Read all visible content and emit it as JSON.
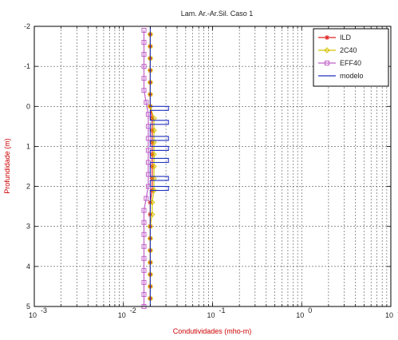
{
  "chart_data": {
    "type": "line",
    "title": "Lam. Ar.-Ar.Sil. Caso 1",
    "xlabel": "Condutividades (mho-m)",
    "ylabel": "Profundidade (m)",
    "x_scale": "log",
    "xlim": [
      0.001,
      10
    ],
    "ylim": [
      5,
      -2
    ],
    "y_inverted": true,
    "grid": true,
    "legend_position": "top-right",
    "x_ticks": [
      {
        "value": 0.001,
        "base": "10",
        "exp": "-3"
      },
      {
        "value": 0.01,
        "base": "10",
        "exp": "-2"
      },
      {
        "value": 0.1,
        "base": "10",
        "exp": "-1"
      },
      {
        "value": 1,
        "base": "10",
        "exp": "0"
      },
      {
        "value": 10,
        "base": "10",
        "exp": "1"
      }
    ],
    "y_ticks": [
      {
        "value": -2,
        "label": "-2"
      },
      {
        "value": -1,
        "label": "-1"
      },
      {
        "value": 0,
        "label": "0"
      },
      {
        "value": 1,
        "label": "1"
      },
      {
        "value": 2,
        "label": "2"
      },
      {
        "value": 3,
        "label": "3"
      },
      {
        "value": 4,
        "label": "4"
      },
      {
        "value": 5,
        "label": "5"
      }
    ],
    "series": [
      {
        "name": "ILD",
        "color": "#e02020",
        "marker": "star",
        "points": [
          [
            0.02,
            -1.8
          ],
          [
            0.02,
            -1.5
          ],
          [
            0.02,
            -1.2
          ],
          [
            0.02,
            -0.9
          ],
          [
            0.02,
            -0.6
          ],
          [
            0.02,
            -0.3
          ],
          [
            0.02,
            0
          ],
          [
            0.021,
            0.3
          ],
          [
            0.021,
            0.6
          ],
          [
            0.021,
            0.9
          ],
          [
            0.021,
            1.2
          ],
          [
            0.021,
            1.5
          ],
          [
            0.021,
            1.8
          ],
          [
            0.021,
            2.1
          ],
          [
            0.02,
            2.4
          ],
          [
            0.02,
            2.7
          ],
          [
            0.02,
            3.0
          ],
          [
            0.02,
            3.3
          ],
          [
            0.02,
            3.6
          ],
          [
            0.02,
            3.9
          ],
          [
            0.02,
            4.2
          ],
          [
            0.02,
            4.5
          ],
          [
            0.02,
            4.8
          ]
        ]
      },
      {
        "name": "2C40",
        "color": "#d4c200",
        "marker": "diamond",
        "points": [
          [
            0.02,
            -1.8
          ],
          [
            0.02,
            -1.5
          ],
          [
            0.02,
            -1.2
          ],
          [
            0.02,
            -0.9
          ],
          [
            0.02,
            -0.6
          ],
          [
            0.02,
            -0.3
          ],
          [
            0.02,
            0
          ],
          [
            0.022,
            0.3
          ],
          [
            0.022,
            0.6
          ],
          [
            0.022,
            0.9
          ],
          [
            0.022,
            1.2
          ],
          [
            0.022,
            1.5
          ],
          [
            0.022,
            1.8
          ],
          [
            0.022,
            2.1
          ],
          [
            0.021,
            2.4
          ],
          [
            0.021,
            2.7
          ],
          [
            0.02,
            3.0
          ],
          [
            0.02,
            3.3
          ],
          [
            0.02,
            3.6
          ],
          [
            0.02,
            3.9
          ],
          [
            0.02,
            4.2
          ],
          [
            0.02,
            4.5
          ],
          [
            0.02,
            4.8
          ]
        ]
      },
      {
        "name": "EFF40",
        "color": "#c060c8",
        "marker": "square",
        "points": [
          [
            0.017,
            -1.9
          ],
          [
            0.017,
            -1.6
          ],
          [
            0.017,
            -1.3
          ],
          [
            0.017,
            -1.0
          ],
          [
            0.017,
            -0.7
          ],
          [
            0.017,
            -0.4
          ],
          [
            0.018,
            -0.1
          ],
          [
            0.019,
            0.2
          ],
          [
            0.019,
            0.5
          ],
          [
            0.019,
            0.8
          ],
          [
            0.019,
            1.1
          ],
          [
            0.019,
            1.4
          ],
          [
            0.019,
            1.7
          ],
          [
            0.019,
            2.0
          ],
          [
            0.018,
            2.3
          ],
          [
            0.017,
            2.6
          ],
          [
            0.017,
            2.9
          ],
          [
            0.017,
            3.2
          ],
          [
            0.017,
            3.5
          ],
          [
            0.017,
            3.8
          ],
          [
            0.017,
            4.1
          ],
          [
            0.017,
            4.4
          ],
          [
            0.017,
            4.7
          ],
          [
            0.017,
            5.0
          ]
        ]
      },
      {
        "name": "modelo",
        "color": "#2030c0",
        "marker": "none",
        "points": [
          [
            0.02,
            -2
          ],
          [
            0.02,
            0
          ],
          [
            0.032,
            0
          ],
          [
            0.032,
            0.1
          ],
          [
            0.02,
            0.1
          ],
          [
            0.02,
            0.35
          ],
          [
            0.032,
            0.35
          ],
          [
            0.032,
            0.45
          ],
          [
            0.02,
            0.45
          ],
          [
            0.02,
            0.75
          ],
          [
            0.032,
            0.75
          ],
          [
            0.032,
            0.85
          ],
          [
            0.02,
            0.85
          ],
          [
            0.02,
            1.0
          ],
          [
            0.032,
            1.0
          ],
          [
            0.032,
            1.1
          ],
          [
            0.02,
            1.1
          ],
          [
            0.02,
            1.3
          ],
          [
            0.032,
            1.3
          ],
          [
            0.032,
            1.4
          ],
          [
            0.02,
            1.4
          ],
          [
            0.02,
            1.75
          ],
          [
            0.032,
            1.75
          ],
          [
            0.032,
            1.85
          ],
          [
            0.02,
            1.85
          ],
          [
            0.02,
            2.0
          ],
          [
            0.032,
            2.0
          ],
          [
            0.032,
            2.1
          ],
          [
            0.02,
            2.1
          ],
          [
            0.02,
            5
          ]
        ]
      }
    ]
  }
}
